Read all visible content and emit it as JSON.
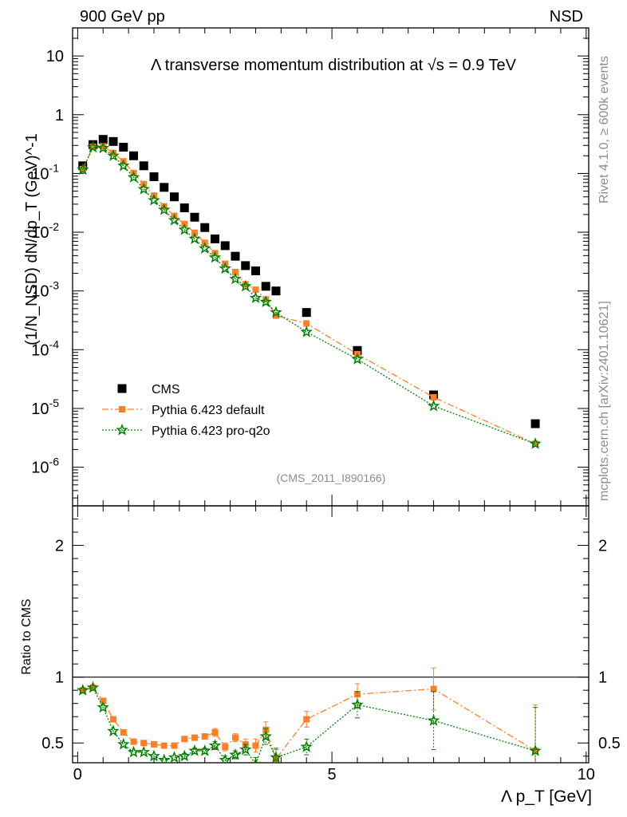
{
  "header": {
    "left_label": "900 GeV pp",
    "right_label": "NSD"
  },
  "side_notes": {
    "rivet": "Rivet 4.1.0, ≥ 600k events",
    "mcplots": "mcplots.cern.ch [arXiv:2401.10621]"
  },
  "chart_data": {
    "type": "scatter",
    "title": "Λ transverse momentum distribution at √s = 0.9 TeV",
    "analysis_id": "(CMS_2011_I890166)",
    "xlabel": "Λ p_T [GeV]",
    "ylabel": "(1/N_NSD) dN/dp_T (GeV)^-1",
    "ratio_ylabel": "Ratio to CMS",
    "xlim": [
      -0.1,
      10.05
    ],
    "ylim": [
      2.2e-07,
      30
    ],
    "ratio_ylim": [
      0.35,
      2.3
    ],
    "x_ticks": [
      0,
      5,
      10
    ],
    "y_ticks": [
      "10",
      "1",
      "10^-1",
      "10^-2",
      "10^-3",
      "10^-4",
      "10^-5",
      "10^-6"
    ],
    "ratio_ticks": [
      "0.5",
      "1",
      "2"
    ],
    "legend_position": "bottom-left",
    "x": [
      0.1,
      0.3,
      0.5,
      0.7,
      0.9,
      1.1,
      1.3,
      1.5,
      1.7,
      1.9,
      2.1,
      2.3,
      2.5,
      2.7,
      2.9,
      3.1,
      3.3,
      3.5,
      3.7,
      3.9,
      4.5,
      5.5,
      7.0,
      9.0
    ],
    "series": [
      {
        "name": "CMS",
        "color": "#000000",
        "marker": "square",
        "values": [
          0.135,
          0.31,
          0.38,
          0.35,
          0.28,
          0.2,
          0.135,
          0.088,
          0.058,
          0.04,
          0.026,
          0.018,
          0.012,
          0.0077,
          0.0059,
          0.0039,
          0.0027,
          0.0022,
          0.0012,
          0.001,
          0.00043,
          9.7e-05,
          1.7e-05,
          5.5e-06
        ]
      },
      {
        "name": "Pythia 6.423 default",
        "color": "#ff7f27",
        "marker": "square",
        "line": "dash-dot",
        "values": [
          0.119,
          0.285,
          0.29,
          0.224,
          0.161,
          0.102,
          0.066,
          0.042,
          0.0275,
          0.019,
          0.0138,
          0.0098,
          0.0066,
          0.0044,
          0.0029,
          0.0021,
          0.0013,
          0.00105,
          0.00072,
          0.00038,
          0.00028,
          8.4e-05,
          1.55e-05,
          2.5e-06
        ],
        "ratio": [
          0.9,
          0.92,
          0.82,
          0.68,
          0.58,
          0.51,
          0.5,
          0.49,
          0.48,
          0.48,
          0.53,
          0.54,
          0.55,
          0.58,
          0.47,
          0.54,
          0.49,
          0.48,
          0.6,
          0.38,
          0.68,
          0.87,
          0.91,
          0.44
        ],
        "ratio_err": [
          0.01,
          0.01,
          0.01,
          0.01,
          0.01,
          0.01,
          0.01,
          0.01,
          0.01,
          0.01,
          0.02,
          0.02,
          0.02,
          0.03,
          0.03,
          0.03,
          0.04,
          0.05,
          0.06,
          0.07,
          0.06,
          0.08,
          0.16,
          0.35
        ]
      },
      {
        "name": "Pythia 6.423 pro-q2o",
        "color": "#008000",
        "marker": "star",
        "line": "dotted",
        "values": [
          0.116,
          0.28,
          0.27,
          0.2,
          0.135,
          0.086,
          0.054,
          0.035,
          0.024,
          0.016,
          0.011,
          0.0077,
          0.0053,
          0.0037,
          0.0024,
          0.0016,
          0.0012,
          0.00076,
          0.00065,
          0.00043,
          0.0002,
          6.9e-05,
          1.1e-05,
          2.5e-06
        ],
        "ratio": [
          0.9,
          0.92,
          0.77,
          0.59,
          0.49,
          0.43,
          0.43,
          0.4,
          0.37,
          0.39,
          0.4,
          0.44,
          0.44,
          0.48,
          0.37,
          0.41,
          0.45,
          0.34,
          0.55,
          0.39,
          0.47,
          0.79,
          0.67,
          0.44
        ],
        "ratio_err": [
          0.01,
          0.01,
          0.01,
          0.01,
          0.01,
          0.01,
          0.01,
          0.01,
          0.01,
          0.01,
          0.02,
          0.02,
          0.02,
          0.03,
          0.03,
          0.03,
          0.04,
          0.05,
          0.06,
          0.07,
          0.06,
          0.1,
          0.22,
          0.33
        ]
      }
    ]
  }
}
